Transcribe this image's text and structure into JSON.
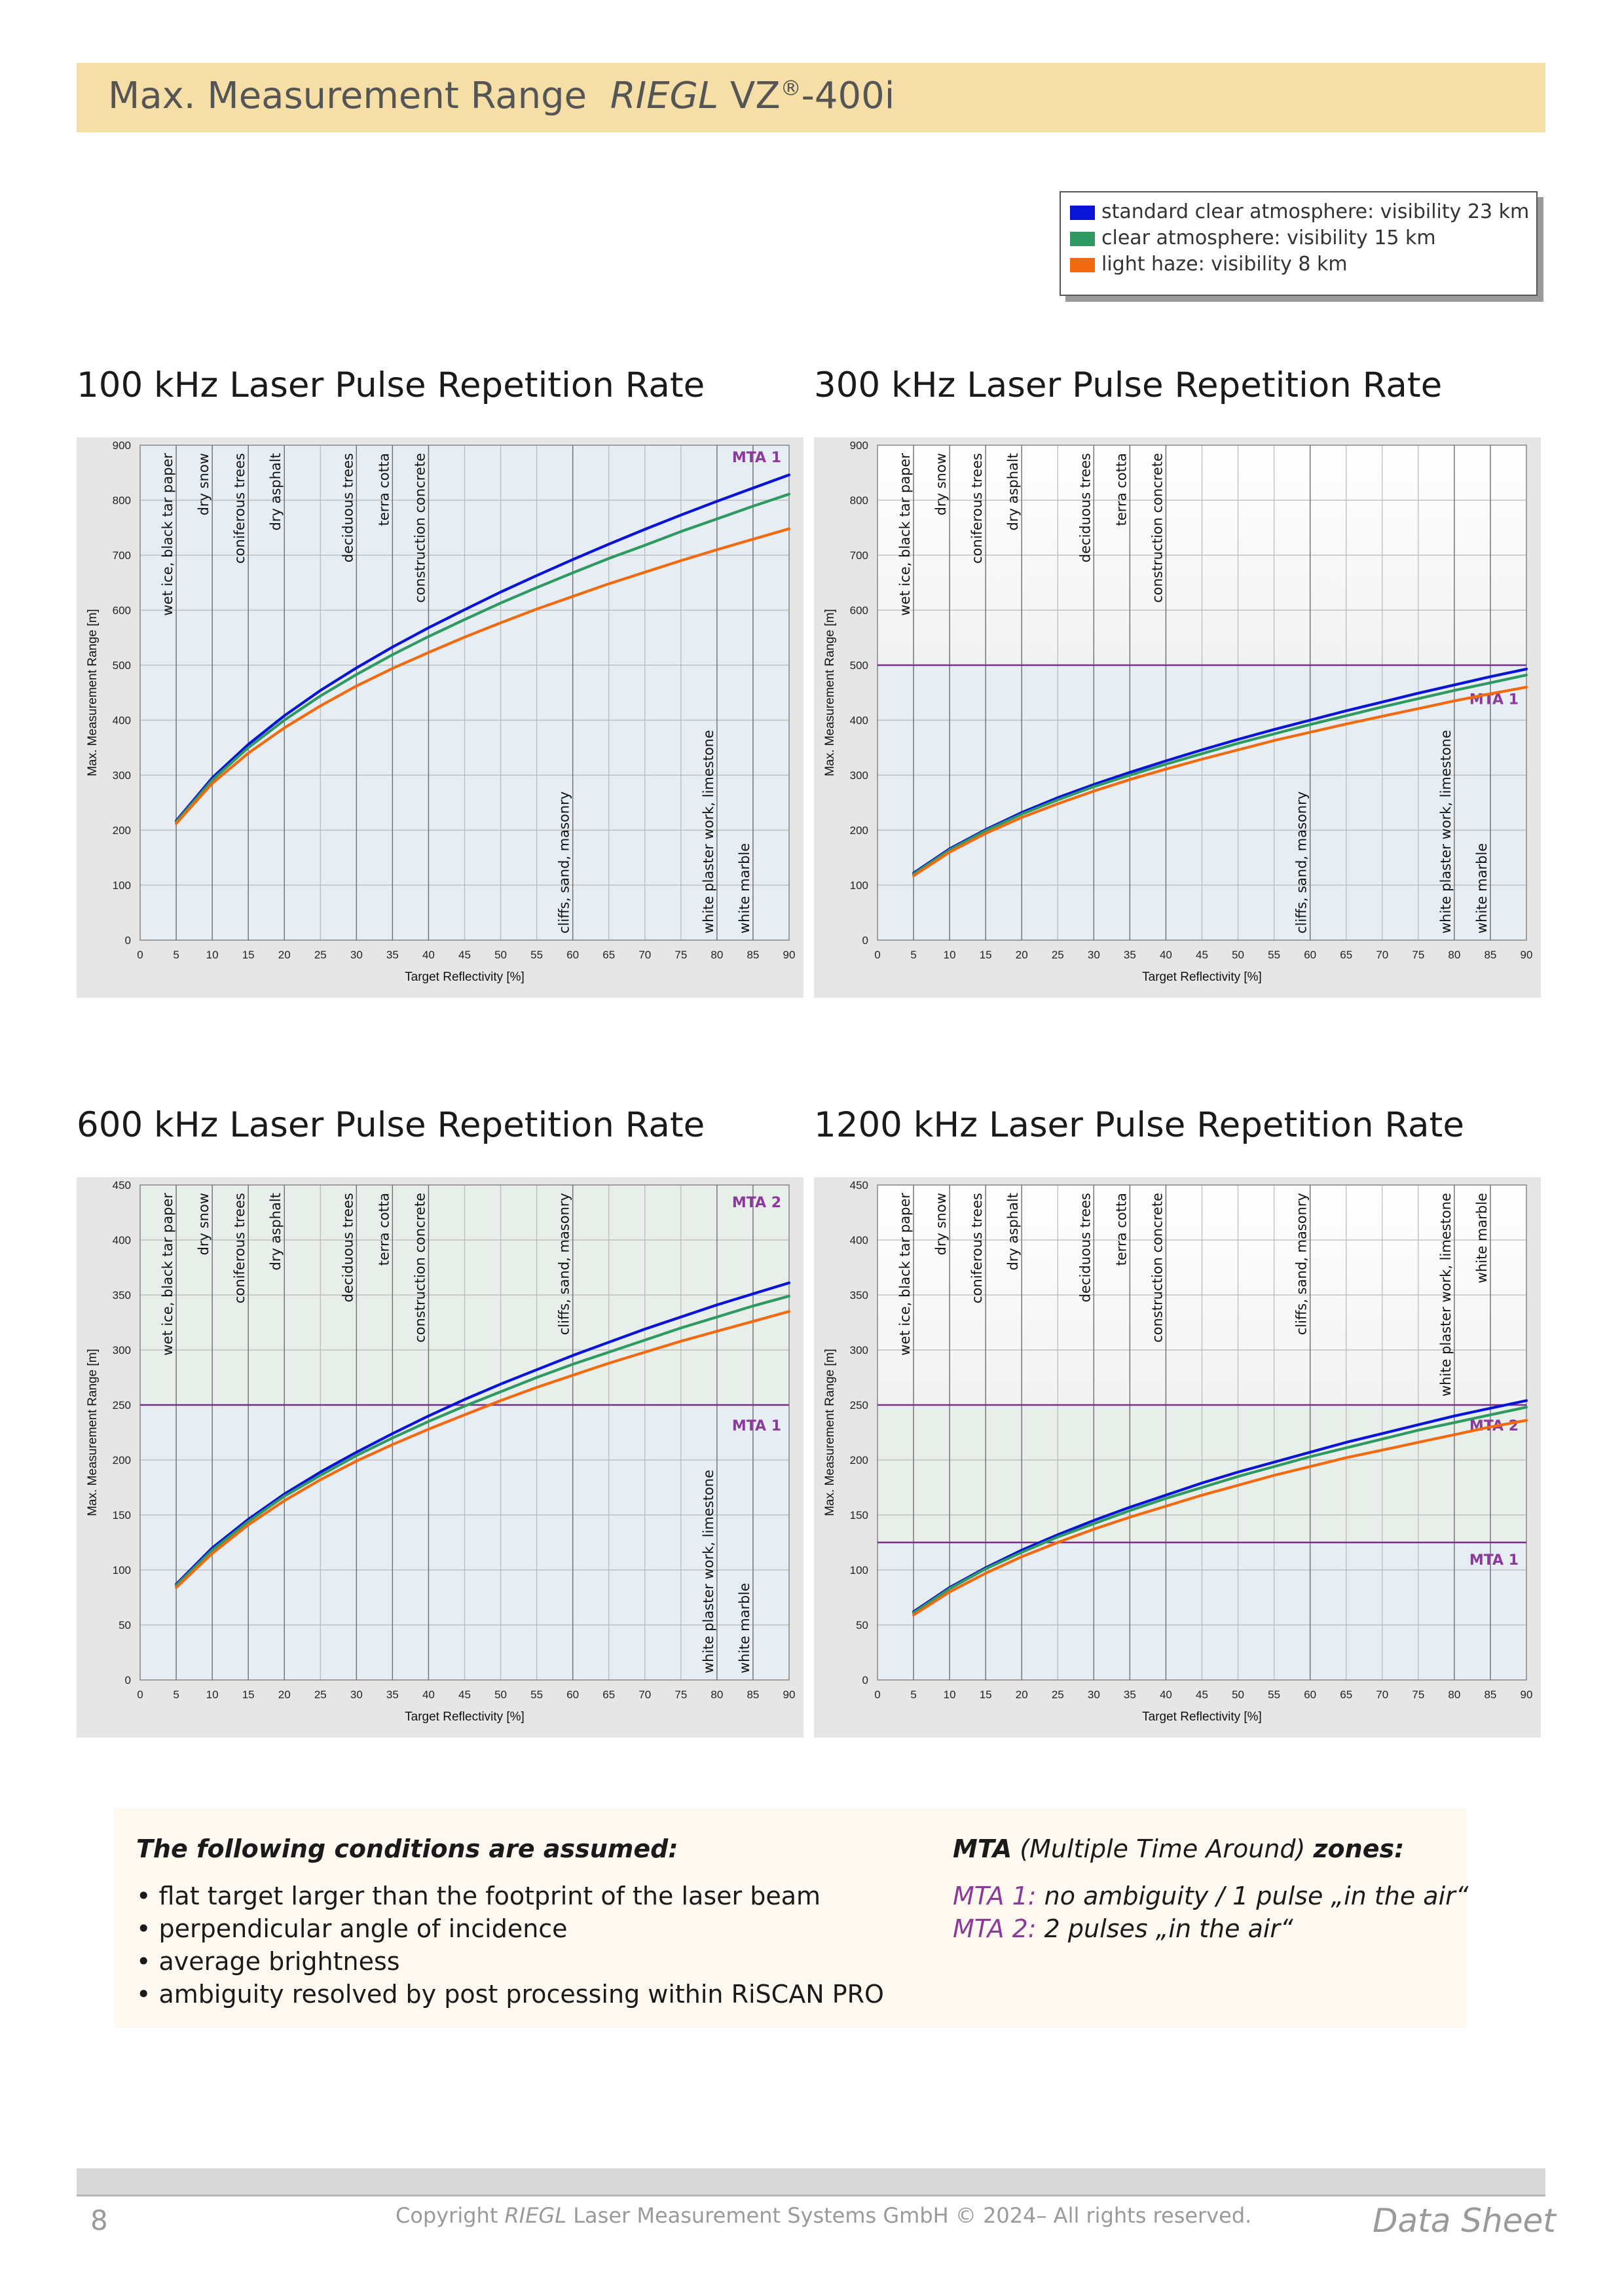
{
  "header": {
    "title_prefix": "Max. Measurement Range",
    "brand": "RIEGL",
    "model": "VZ",
    "reg": "®",
    "model_suffix": "-400i"
  },
  "legend": {
    "items": [
      {
        "label": "standard clear atmosphere: visibility 23 km",
        "color": "#0a14d6"
      },
      {
        "label": "clear atmosphere: visibility 15 km",
        "color": "#2e9a62"
      },
      {
        "label": "light haze: visibility 8 km",
        "color": "#f26a10"
      }
    ]
  },
  "chart_data": [
    {
      "type": "line",
      "title": "100 kHz Laser Pulse Repetition Rate",
      "xlabel": "Target Reflectivity [%]",
      "ylabel": "Max. Measurement Range [m]",
      "xlim": [
        0,
        90
      ],
      "ylim": [
        0,
        900
      ],
      "xticks": [
        0,
        5,
        10,
        15,
        20,
        25,
        30,
        35,
        40,
        45,
        50,
        55,
        60,
        65,
        70,
        75,
        80,
        85,
        90
      ],
      "yticks": [
        0,
        100,
        200,
        300,
        400,
        500,
        600,
        700,
        800,
        900
      ],
      "grid": true,
      "x": [
        5,
        10,
        15,
        20,
        25,
        30,
        35,
        40,
        45,
        50,
        55,
        60,
        65,
        70,
        75,
        80,
        85,
        90
      ],
      "series": [
        {
          "name": "standard clear atmosphere: visibility 23 km",
          "color": "#0a14d6",
          "values": [
            217,
            295,
            356,
            408,
            454,
            495,
            533,
            568,
            601,
            633,
            663,
            692,
            720,
            747,
            773,
            798,
            822,
            846
          ]
        },
        {
          "name": "clear atmosphere: visibility 15 km",
          "color": "#2e9a62",
          "values": [
            215,
            291,
            350,
            400,
            444,
            483,
            519,
            552,
            583,
            613,
            641,
            668,
            694,
            718,
            743,
            766,
            789,
            811
          ]
        },
        {
          "name": "light haze: visibility 8 km",
          "color": "#f26a10",
          "values": [
            212,
            285,
            340,
            386,
            426,
            462,
            494,
            523,
            551,
            577,
            602,
            625,
            648,
            669,
            690,
            710,
            729,
            748
          ]
        }
      ],
      "mta_lines": [],
      "zones": [
        {
          "label": "MTA 1",
          "from": 0,
          "to": 900,
          "color": "#e6edf3"
        }
      ],
      "annotations": [
        {
          "text": "wet  ice, black tar paper",
          "x": 5
        },
        {
          "text": "dry snow",
          "x": 10
        },
        {
          "text": "coniferous trees",
          "x": 15
        },
        {
          "text": "dry asphalt",
          "x": 20
        },
        {
          "text": "deciduous trees",
          "x": 30
        },
        {
          "text": "terra cotta",
          "x": 35
        },
        {
          "text": "construction concrete",
          "x": 40
        },
        {
          "text": "cliffs, sand, masonry",
          "x": 60
        },
        {
          "text": "white plaster work, limestone",
          "x": 80
        },
        {
          "text": "white marble",
          "x": 85
        }
      ],
      "annotation_band": "top-left / bottom-right"
    },
    {
      "type": "line",
      "title": "300 kHz Laser Pulse Repetition Rate",
      "xlabel": "Target Reflectivity [%]",
      "ylabel": "Max. Measurement Range [m]",
      "xlim": [
        0,
        90
      ],
      "ylim": [
        0,
        900
      ],
      "xticks": [
        0,
        5,
        10,
        15,
        20,
        25,
        30,
        35,
        40,
        45,
        50,
        55,
        60,
        65,
        70,
        75,
        80,
        85,
        90
      ],
      "yticks": [
        0,
        100,
        200,
        300,
        400,
        500,
        600,
        700,
        800,
        900
      ],
      "grid": true,
      "x": [
        5,
        10,
        15,
        20,
        25,
        30,
        35,
        40,
        45,
        50,
        55,
        60,
        65,
        70,
        75,
        80,
        85,
        90
      ],
      "series": [
        {
          "name": "standard clear atmosphere: visibility 23 km",
          "color": "#0a14d6",
          "values": [
            122,
            166,
            201,
            232,
            259,
            283,
            305,
            326,
            346,
            365,
            383,
            400,
            417,
            433,
            449,
            464,
            479,
            493
          ]
        },
        {
          "name": "clear atmosphere: visibility 15 km",
          "color": "#2e9a62",
          "values": [
            120,
            164,
            199,
            229,
            255,
            279,
            300,
            320,
            339,
            358,
            375,
            392,
            408,
            424,
            439,
            454,
            468,
            482
          ]
        },
        {
          "name": "light haze: visibility 8 km",
          "color": "#f26a10",
          "values": [
            117,
            160,
            194,
            223,
            248,
            271,
            292,
            311,
            329,
            346,
            363,
            378,
            393,
            407,
            421,
            435,
            448,
            460
          ]
        }
      ],
      "mta_lines": [
        500
      ],
      "zones": [
        {
          "label": "MTA 1",
          "from": 0,
          "to": 500,
          "color": "#e6edf3"
        }
      ],
      "annotations": [
        {
          "text": "wet  ice, black tar paper",
          "x": 5
        },
        {
          "text": "dry snow",
          "x": 10
        },
        {
          "text": "coniferous trees",
          "x": 15
        },
        {
          "text": "dry asphalt",
          "x": 20
        },
        {
          "text": "deciduous trees",
          "x": 30
        },
        {
          "text": "terra cotta",
          "x": 35
        },
        {
          "text": "construction concrete",
          "x": 40
        },
        {
          "text": "cliffs, sand, masonry",
          "x": 60
        },
        {
          "text": "white plaster work, limestone",
          "x": 80
        },
        {
          "text": "white marble",
          "x": 85
        }
      ]
    },
    {
      "type": "line",
      "title": "600 kHz Laser Pulse Repetition Rate",
      "xlabel": "Target Reflectivity [%]",
      "ylabel": "Max. Measurement Range [m]",
      "xlim": [
        0,
        90
      ],
      "ylim": [
        0,
        450
      ],
      "xticks": [
        0,
        5,
        10,
        15,
        20,
        25,
        30,
        35,
        40,
        45,
        50,
        55,
        60,
        65,
        70,
        75,
        80,
        85,
        90
      ],
      "yticks": [
        0,
        50,
        100,
        150,
        200,
        250,
        300,
        350,
        400,
        450
      ],
      "grid": true,
      "x": [
        5,
        10,
        15,
        20,
        25,
        30,
        35,
        40,
        45,
        50,
        55,
        60,
        65,
        70,
        75,
        80,
        85,
        90
      ],
      "series": [
        {
          "name": "standard clear atmosphere: visibility 23 km",
          "color": "#0a14d6",
          "values": [
            87,
            120,
            146,
            169,
            189,
            207,
            224,
            240,
            255,
            269,
            282,
            295,
            307,
            319,
            330,
            341,
            351,
            361
          ]
        },
        {
          "name": "clear atmosphere: visibility 15 km",
          "color": "#2e9a62",
          "values": [
            86,
            118,
            144,
            167,
            186,
            204,
            220,
            235,
            249,
            262,
            275,
            287,
            298,
            309,
            320,
            330,
            340,
            349
          ]
        },
        {
          "name": "light haze: visibility 8 km",
          "color": "#f26a10",
          "values": [
            84,
            115,
            141,
            163,
            182,
            199,
            214,
            228,
            241,
            254,
            266,
            277,
            288,
            298,
            308,
            317,
            326,
            335
          ]
        }
      ],
      "mta_lines": [
        250
      ],
      "zones": [
        {
          "label": "MTA 2",
          "from": 250,
          "to": 450,
          "color": "#e8efea"
        },
        {
          "label": "MTA 1",
          "from": 0,
          "to": 250,
          "color": "#e6edf3"
        }
      ],
      "annotations": [
        {
          "text": "wet  ice, black tar paper",
          "x": 5
        },
        {
          "text": "dry snow",
          "x": 10
        },
        {
          "text": "coniferous trees",
          "x": 15
        },
        {
          "text": "dry asphalt",
          "x": 20
        },
        {
          "text": "deciduous trees",
          "x": 30
        },
        {
          "text": "terra cotta",
          "x": 35
        },
        {
          "text": "construction concrete",
          "x": 40
        },
        {
          "text": "cliffs, sand,  masonry",
          "x": 60
        },
        {
          "text": "white plaster work, limestone",
          "x": 80
        },
        {
          "text": "white marble",
          "x": 85
        }
      ]
    },
    {
      "type": "line",
      "title": "1200 kHz Laser Pulse Repetition Rate",
      "xlabel": "Target Reflectivity [%]",
      "ylabel": "Max. Measurement Range [m]",
      "xlim": [
        0,
        90
      ],
      "ylim": [
        0,
        450
      ],
      "xticks": [
        0,
        5,
        10,
        15,
        20,
        25,
        30,
        35,
        40,
        45,
        50,
        55,
        60,
        65,
        70,
        75,
        80,
        85,
        90
      ],
      "yticks": [
        0,
        50,
        100,
        150,
        200,
        250,
        300,
        350,
        400,
        450
      ],
      "grid": true,
      "x": [
        5,
        10,
        15,
        20,
        25,
        30,
        35,
        40,
        45,
        50,
        55,
        60,
        65,
        70,
        75,
        80,
        85,
        90
      ],
      "series": [
        {
          "name": "standard clear atmosphere: visibility 23 km",
          "color": "#0a14d6",
          "values": [
            62,
            84,
            102,
            118,
            132,
            145,
            157,
            168,
            179,
            189,
            198,
            207,
            216,
            224,
            232,
            240,
            247,
            254
          ]
        },
        {
          "name": "clear atmosphere: visibility 15 km",
          "color": "#2e9a62",
          "values": [
            61,
            83,
            101,
            116,
            130,
            142,
            154,
            165,
            175,
            185,
            194,
            203,
            211,
            219,
            227,
            234,
            241,
            248
          ]
        },
        {
          "name": "light haze: visibility 8 km",
          "color": "#f26a10",
          "values": [
            59,
            80,
            97,
            112,
            125,
            137,
            148,
            158,
            168,
            177,
            186,
            194,
            202,
            209,
            216,
            223,
            230,
            236
          ]
        }
      ],
      "mta_lines": [
        125,
        250
      ],
      "zones": [
        {
          "label": "MTA 2",
          "from": 125,
          "to": 250,
          "color": "#e8efea"
        },
        {
          "label": "MTA 1",
          "from": 0,
          "to": 125,
          "color": "#e6edf3"
        }
      ],
      "annotations": [
        {
          "text": "wet  ice, black tar paper",
          "x": 5
        },
        {
          "text": "dry snow",
          "x": 10
        },
        {
          "text": "coniferous trees",
          "x": 15
        },
        {
          "text": "dry asphalt",
          "x": 20
        },
        {
          "text": "deciduous trees",
          "x": 30
        },
        {
          "text": "terra cotta",
          "x": 35
        },
        {
          "text": "construction concrete",
          "x": 40
        },
        {
          "text": "cliffs, sand, masonry",
          "x": 60
        },
        {
          "text": "white plaster work, limestone",
          "x": 80
        },
        {
          "text": "white marble",
          "x": 85
        }
      ]
    }
  ],
  "conditions": {
    "heading": "The following conditions are assumed:",
    "items": [
      "• flat target larger than the footprint of the laser beam",
      "• perpendicular angle of incidence",
      "• average brightness",
      "• ambiguity resolved by post processing within RiSCAN PRO"
    ]
  },
  "mta_info": {
    "heading_bold": "MTA",
    "heading_mid": " (Multiple Time Around) ",
    "heading_end": "zones:",
    "lines": [
      {
        "tag": "MTA 1:",
        "text": " no ambiguity / 1 pulse „in the air“"
      },
      {
        "tag": "MTA 2:",
        "text": " 2 pulses „in the air“"
      }
    ]
  },
  "footer": {
    "page": "8",
    "copyright_pre": "Copyright ",
    "copyright_brand": "RIEGL",
    "copyright_post": " Laser Measurement Systems GmbH © 2024– All rights reserved.",
    "doc_type": "Data Sheet"
  }
}
